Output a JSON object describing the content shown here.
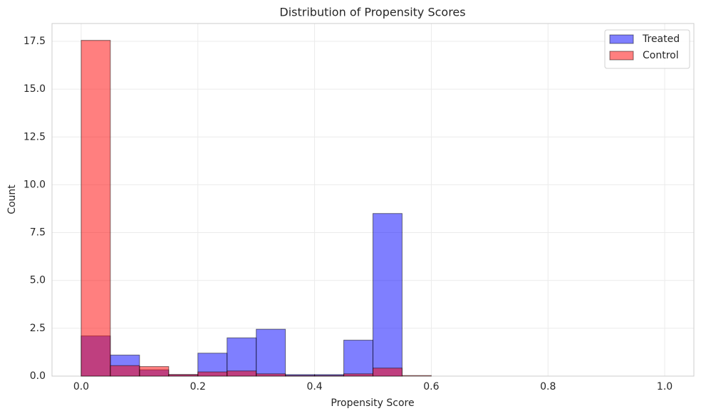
{
  "chart_data": {
    "type": "histogram",
    "title": "Distribution of Propensity Scores",
    "xlabel": "Propensity Score",
    "ylabel": "Count",
    "bins": [
      0,
      0.05,
      0.1,
      0.15,
      0.2,
      0.25,
      0.3,
      0.35,
      0.4,
      0.45,
      0.5,
      0.55,
      0.6,
      0.65,
      0.7,
      0.75,
      0.8,
      0.85,
      0.9,
      0.95,
      1.0
    ],
    "series": [
      {
        "name": "Treated",
        "color": "#0000ff",
        "values": [
          2.1,
          1.1,
          0.33,
          0.08,
          1.2,
          2.0,
          2.45,
          0.08,
          0.08,
          1.88,
          8.5,
          0,
          0,
          0,
          0,
          0,
          0,
          0,
          0,
          0
        ]
      },
      {
        "name": "Control",
        "color": "#ff0000",
        "values": [
          17.55,
          0.55,
          0.5,
          0.08,
          0.22,
          0.27,
          0.12,
          0.03,
          0.03,
          0.12,
          0.42,
          0.03,
          0,
          0,
          0,
          0,
          0,
          0,
          0,
          0
        ]
      }
    ],
    "xlim": [
      -0.05,
      1.05
    ],
    "ylim": [
      0,
      18.43
    ],
    "xticks": [
      {
        "value": 0,
        "label": "0.0"
      },
      0.2,
      0.4,
      0.6,
      0.8,
      {
        "value": 1,
        "label": "1.0"
      }
    ],
    "yticks": [
      {
        "value": 0,
        "label": "0.0"
      },
      2.5,
      {
        "value": 5,
        "label": "5.0"
      },
      7.5,
      {
        "value": 10,
        "label": "10.0"
      },
      12.5,
      {
        "value": 15,
        "label": "15.0"
      },
      17.5
    ],
    "grid": true,
    "legend": "upper right"
  }
}
